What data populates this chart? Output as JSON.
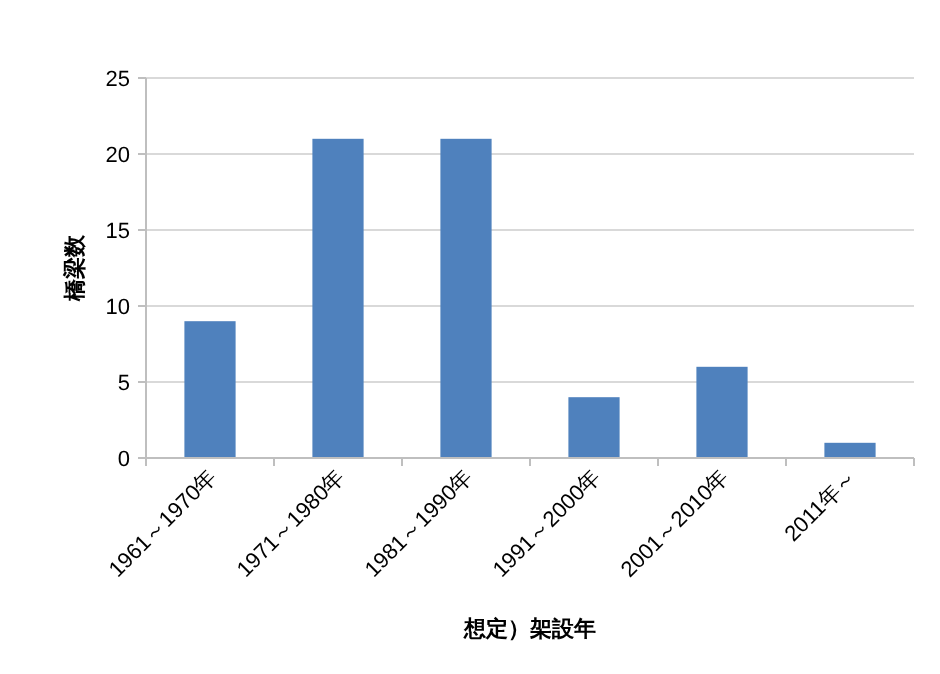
{
  "chart_data": {
    "type": "bar",
    "ylabel": "橋梁数",
    "xlabel": "想定）架設年",
    "categories": [
      "1961～1970年",
      "1971～1980年",
      "1981～1990年",
      "1991～2000年",
      "2001～2010年",
      "2011年～"
    ],
    "values": [
      9,
      21,
      21,
      4,
      6,
      1
    ],
    "color": "#4f81bd",
    "ylim": [
      0,
      25
    ],
    "yticks": [
      0,
      5,
      10,
      15,
      20,
      25
    ],
    "grid": "y"
  }
}
